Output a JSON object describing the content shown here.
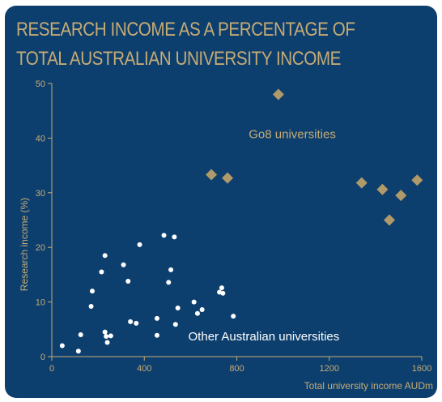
{
  "chart_data": {
    "type": "scatter",
    "title": "RESEARCH INCOME AS A PERCENTAGE OF TOTAL AUSTRALIAN UNIVERSITY INCOME",
    "title_lines": [
      "RESEARCH INCOME AS A PERCENTAGE OF",
      "TOTAL AUSTRALIAN UNIVERSITY INCOME"
    ],
    "xlabel": "Total university income AUDm",
    "ylabel": "Research income (%)",
    "xlim": [
      0,
      1600
    ],
    "ylim": [
      0,
      50
    ],
    "x_ticks": [
      0,
      400,
      800,
      1200,
      1600
    ],
    "y_ticks": [
      0,
      10,
      20,
      30,
      40,
      50
    ],
    "grid": false,
    "legend": "none",
    "colors": {
      "background": "#0d3f6e",
      "accent": "#c6ab74",
      "go8": "#b09a6a",
      "other": "#ffffff"
    },
    "series": [
      {
        "name": "Go8 universities",
        "marker": "diamond",
        "color": "#b09a6a",
        "points": [
          {
            "x": 980,
            "y": 48
          },
          {
            "x": 690,
            "y": 33.3
          },
          {
            "x": 760,
            "y": 32.7
          },
          {
            "x": 1340,
            "y": 31.8
          },
          {
            "x": 1430,
            "y": 30.6
          },
          {
            "x": 1510,
            "y": 29.5
          },
          {
            "x": 1580,
            "y": 32.3
          },
          {
            "x": 1460,
            "y": 25
          }
        ]
      },
      {
        "name": "Other Australian universities",
        "marker": "circle",
        "color": "#ffffff",
        "points": [
          {
            "x": 45,
            "y": 2
          },
          {
            "x": 115,
            "y": 1
          },
          {
            "x": 125,
            "y": 4
          },
          {
            "x": 170,
            "y": 9.2
          },
          {
            "x": 175,
            "y": 12
          },
          {
            "x": 215,
            "y": 15.5
          },
          {
            "x": 230,
            "y": 18.5
          },
          {
            "x": 230,
            "y": 4.5
          },
          {
            "x": 235,
            "y": 3.7
          },
          {
            "x": 240,
            "y": 2.6
          },
          {
            "x": 255,
            "y": 3.8
          },
          {
            "x": 310,
            "y": 16.8
          },
          {
            "x": 330,
            "y": 13.8
          },
          {
            "x": 340,
            "y": 6.4
          },
          {
            "x": 365,
            "y": 6.1
          },
          {
            "x": 380,
            "y": 20.5
          },
          {
            "x": 455,
            "y": 7
          },
          {
            "x": 455,
            "y": 3.9
          },
          {
            "x": 485,
            "y": 22.2
          },
          {
            "x": 505,
            "y": 13.6
          },
          {
            "x": 515,
            "y": 15.9
          },
          {
            "x": 530,
            "y": 21.9
          },
          {
            "x": 535,
            "y": 5.9
          },
          {
            "x": 545,
            "y": 8.9
          },
          {
            "x": 615,
            "y": 10
          },
          {
            "x": 630,
            "y": 7.9
          },
          {
            "x": 650,
            "y": 8.6
          },
          {
            "x": 725,
            "y": 11.8
          },
          {
            "x": 735,
            "y": 12.6
          },
          {
            "x": 740,
            "y": 11.6
          },
          {
            "x": 785,
            "y": 7.4
          }
        ]
      }
    ],
    "annotations": [
      {
        "text": "Go8 universities",
        "x": 1040,
        "y": 40
      },
      {
        "text": "Other Australian universities",
        "x": 590,
        "y": 3
      }
    ]
  }
}
